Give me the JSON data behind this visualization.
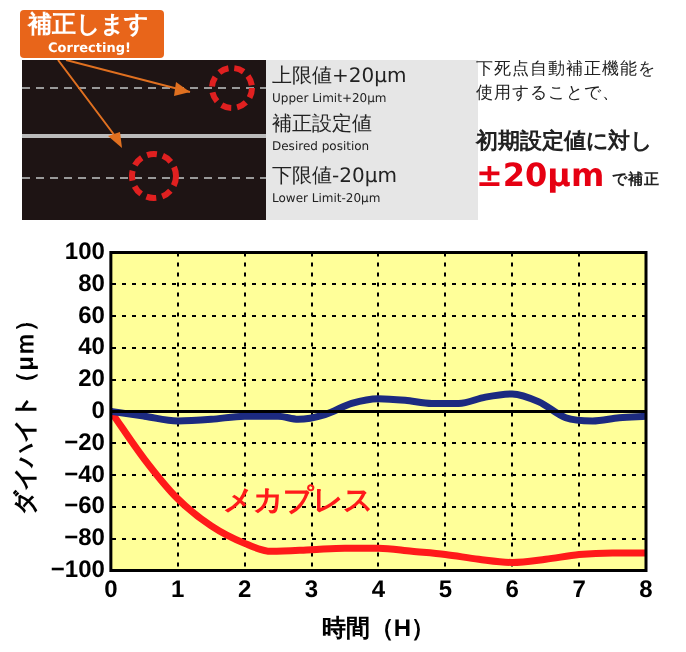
{
  "chart_data": {
    "type": "line",
    "xlabel": "時間（H）",
    "ylabel": "ダイハイト（μｍ）",
    "x": [
      0,
      0.5,
      1,
      1.5,
      2,
      2.5,
      2.8,
      3.2,
      3.6,
      4,
      4.4,
      4.8,
      5.2,
      5.6,
      6,
      6.4,
      6.8,
      7.2,
      7.6,
      8
    ],
    "series": [
      {
        "color": "#1c2a80",
        "values": [
          0,
          -3,
          -6,
          -5,
          -3,
          -3,
          -5,
          -2,
          5,
          8,
          7,
          5,
          5,
          9,
          11,
          6,
          -4,
          -6,
          -4,
          -3
        ]
      },
      {
        "name": "メカプレス",
        "color": "#ff1a1a",
        "x": [
          0,
          0.5,
          1,
          1.5,
          2,
          2.4,
          3,
          3.5,
          4,
          4.5,
          5,
          5.5,
          6,
          6.5,
          7,
          7.5,
          8
        ],
        "values": [
          0,
          -30,
          -55,
          -72,
          -83,
          -88,
          -87,
          -86,
          -86,
          -88,
          -90,
          -93,
          -95,
          -93,
          -90,
          -89,
          -89
        ]
      }
    ],
    "xlim": [
      0,
      8
    ],
    "xticks": [
      0,
      1,
      2,
      3,
      4,
      5,
      6,
      7,
      8
    ],
    "ylim": [
      -100,
      100
    ],
    "yticks": [
      -100,
      -80,
      -60,
      -40,
      -20,
      0,
      20,
      40,
      60,
      80,
      100
    ],
    "grid": true,
    "legend": false,
    "marker": "none",
    "line_style": "solid",
    "ref_lines": [
      {
        "axis": "y",
        "value": 0,
        "color": "#000000"
      }
    ],
    "annotations": [
      "補正します",
      "Correcting!",
      "上限値+20μm",
      "Upper Limit+20μm",
      "補正設定値",
      "Desired position",
      "下限値-20μm",
      "Lower Limit-20μm",
      "下死点自動補正機能を使用することで、",
      "初期設定値に対し",
      "±20μm",
      "で補正"
    ]
  }
}
